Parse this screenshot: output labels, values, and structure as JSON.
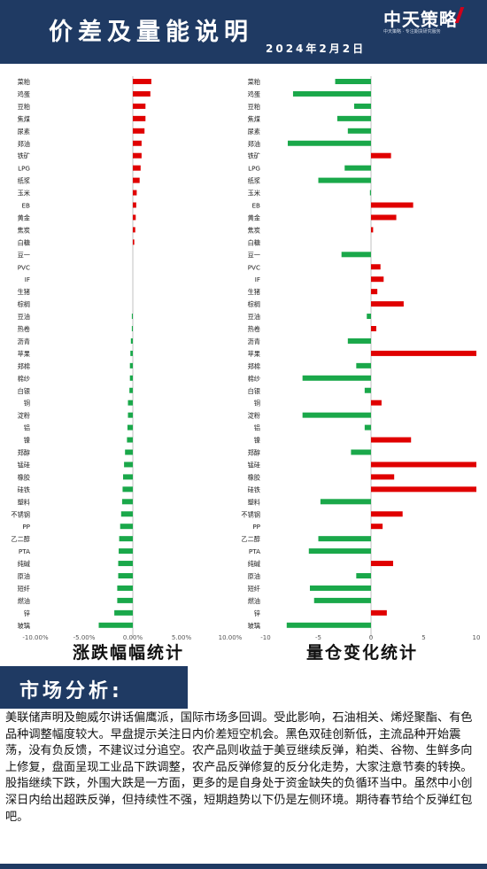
{
  "header": {
    "title": "价差及量能说明",
    "date": "2024年2月2日",
    "logo_text": "中天策略",
    "logo_sub": "中天策略 · 专注期货研究服务",
    "colors": {
      "header_bg": "#1f3a63",
      "positive": "#e00000",
      "negative": "#1aa84a"
    }
  },
  "chart_data": [
    {
      "type": "bar",
      "orientation": "horizontal",
      "title": "涨跌幅幅统计",
      "xlim": [
        -10,
        10
      ],
      "tick_labels": [
        "-10.00%",
        "-5.00%",
        "0.00%",
        "5.00%",
        "10.00%"
      ],
      "tick_values": [
        -10,
        -5,
        0,
        5,
        10
      ],
      "grid": false,
      "categories": [
        "菜粕",
        "鸡蛋",
        "豆粕",
        "焦煤",
        "尿素",
        "郑油",
        "铁矿",
        "LPG",
        "纸浆",
        "玉米",
        "EB",
        "黄金",
        "焦炭",
        "白糖",
        "豆一",
        "PVC",
        "IF",
        "生猪",
        "棕榈",
        "豆油",
        "热卷",
        "沥青",
        "苹果",
        "郑棉",
        "棉纱",
        "白银",
        "铜",
        "淀粉",
        "铝",
        "镍",
        "郑醇",
        "锰硅",
        "橡胶",
        "硅铁",
        "塑料",
        "不锈钢",
        "PP",
        "乙二醇",
        "PTA",
        "纯碱",
        "原油",
        "短纤",
        "燃油",
        "锌",
        "玻璃"
      ],
      "values": [
        1.9,
        1.8,
        1.3,
        1.3,
        1.2,
        0.9,
        0.9,
        0.8,
        0.7,
        0.4,
        0.35,
        0.3,
        0.25,
        0.15,
        0,
        0,
        0,
        0,
        0,
        -0.1,
        -0.1,
        -0.2,
        -0.25,
        -0.3,
        -0.3,
        -0.35,
        -0.5,
        -0.5,
        -0.55,
        -0.6,
        -0.8,
        -0.9,
        -1.0,
        -1.05,
        -1.1,
        -1.2,
        -1.3,
        -1.4,
        -1.45,
        -1.5,
        -1.5,
        -1.6,
        -1.6,
        -1.9,
        -3.5
      ]
    },
    {
      "type": "bar",
      "orientation": "horizontal",
      "title": "量仓变化统计",
      "xlim": [
        -10,
        10
      ],
      "tick_labels": [
        "-10",
        "-5",
        "0",
        "5",
        "10"
      ],
      "tick_values": [
        -10,
        -5,
        0,
        5,
        10
      ],
      "grid": false,
      "categories": [
        "菜粕",
        "鸡蛋",
        "豆粕",
        "焦煤",
        "尿素",
        "郑油",
        "铁矿",
        "LPG",
        "纸浆",
        "玉米",
        "EB",
        "黄金",
        "焦炭",
        "白糖",
        "豆一",
        "PVC",
        "IF",
        "生猪",
        "棕榈",
        "豆油",
        "热卷",
        "沥青",
        "苹果",
        "郑棉",
        "棉纱",
        "白银",
        "铜",
        "淀粉",
        "铝",
        "镍",
        "郑醇",
        "锰硅",
        "橡胶",
        "硅铁",
        "塑料",
        "不锈钢",
        "PP",
        "乙二醇",
        "PTA",
        "纯碱",
        "原油",
        "短纤",
        "燃油",
        "锌",
        "玻璃"
      ],
      "values": [
        -3.4,
        -7.4,
        -1.6,
        -3.2,
        -2.2,
        -7.9,
        1.9,
        -2.5,
        -5.0,
        -0.1,
        4.0,
        2.4,
        0.2,
        0,
        -2.8,
        0.9,
        1.2,
        0.6,
        3.1,
        -0.4,
        0.5,
        -2.2,
        10,
        -1.4,
        -6.5,
        -0.6,
        1.0,
        -6.5,
        -0.6,
        3.8,
        -1.9,
        10,
        2.2,
        10,
        -4.8,
        3.0,
        1.1,
        -5.0,
        -5.9,
        2.1,
        -1.4,
        -5.8,
        -5.4,
        1.5,
        -8.0
      ]
    }
  ],
  "section": {
    "title": "市场分析:"
  },
  "analysis": {
    "para1": "美联储声明及鲍威尔讲话偏鹰派，国际市场多回调。受此影响，石油相关、烯烃聚酯、有色品种调整幅度较大。早盘提示关注日内价差短空机会。黑色双硅创新低，主流品种开始震荡，没有负反馈，不建议过分追空。农产品则收益于美豆继续反弹，粕类、谷物、生鲜多向上修复，盘面呈现工业品下跌调整，农产品反弹修复的反分化走势，大家注意节奏的转换。",
    "para2": "股指继续下跌，外围大跌是一方面，更多的是自身处于资金缺失的负循环当中。虽然中小创深日内给出超跌反弹，但持续性不强，短期趋势以下仍是左侧环境。期待春节给个反弹红包吧。"
  }
}
